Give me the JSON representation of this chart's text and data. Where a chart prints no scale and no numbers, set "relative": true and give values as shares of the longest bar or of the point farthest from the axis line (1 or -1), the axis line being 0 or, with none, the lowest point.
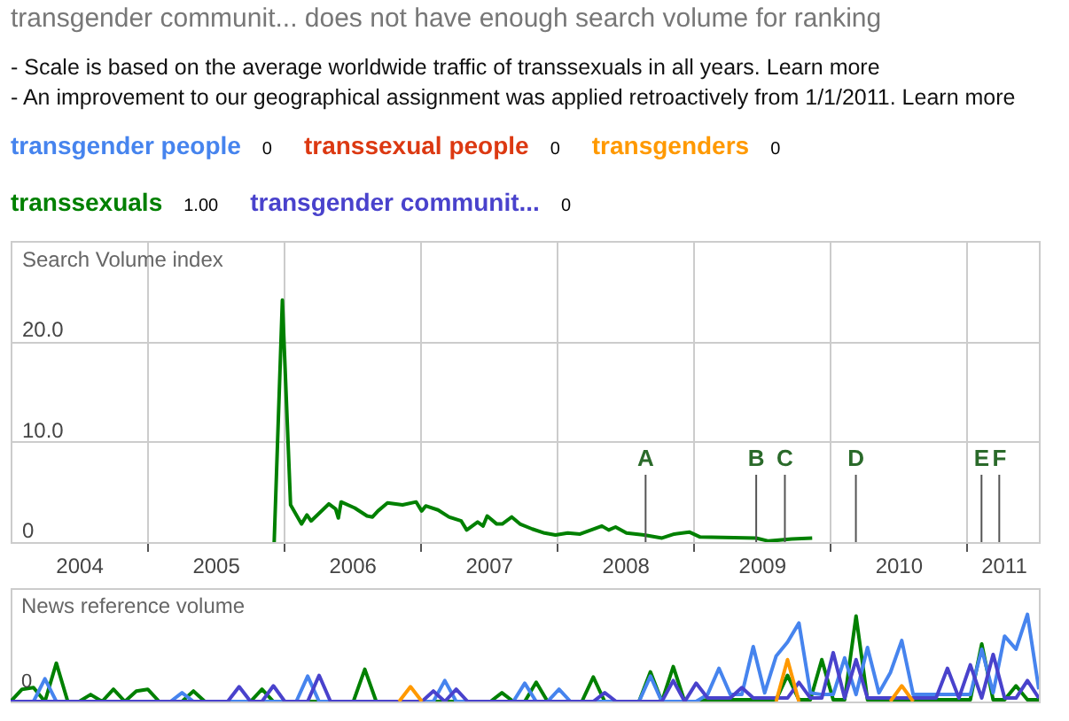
{
  "chart_data": [
    {
      "type": "other",
      "title": "transgender communit... does not have enough search volume for ranking",
      "annotations": [
        "- Scale is based on the average worldwide traffic of transsexuals in all years. Learn more",
        "- An improvement to our geographical assignment was applied retroactively from 1/1/2011. Learn more"
      ],
      "categories": [
        "transgender people",
        "transsexual people",
        "transgenders",
        "transsexuals",
        "transgender communit..."
      ],
      "value_labels": [
        "0",
        "0",
        "0",
        "1.00",
        "0"
      ],
      "colors": [
        "#4684ee",
        "#dc3912",
        "#ff9900",
        "#008000",
        "#4942cc"
      ]
    },
    {
      "type": "line",
      "ylabel": "Search Volume index",
      "grid": true,
      "xlim": [
        2004,
        2011.53
      ],
      "xticks": [
        {
          "value": 2004.5,
          "label": "2004"
        },
        {
          "value": 2005,
          "label": null
        },
        {
          "value": 2005.5,
          "label": "2005"
        },
        {
          "value": 2006,
          "label": null
        },
        {
          "value": 2006.5,
          "label": "2006"
        },
        {
          "value": 2007,
          "label": null
        },
        {
          "value": 2007.5,
          "label": "2007"
        },
        {
          "value": 2008,
          "label": null
        },
        {
          "value": 2008.5,
          "label": "2008"
        },
        {
          "value": 2009,
          "label": null
        },
        {
          "value": 2009.5,
          "label": "2009"
        },
        {
          "value": 2010,
          "label": null
        },
        {
          "value": 2010.5,
          "label": "2010"
        },
        {
          "value": 2011,
          "label": null
        },
        {
          "value": 2011.27,
          "label": "2011"
        }
      ],
      "ylim": [
        0,
        30
      ],
      "yticks": [
        0,
        {
          "value": 10,
          "label": "10.0"
        },
        {
          "value": 20,
          "label": "20.0"
        }
      ],
      "series": [
        {
          "color": "#008000",
          "x": [
            2005.93,
            2005.99,
            2006.05,
            2006.13,
            2006.17,
            2006.2,
            2006.33,
            2006.38,
            2006.4,
            2006.42,
            2006.52,
            2006.61,
            2006.65,
            2006.69,
            2006.76,
            2006.87,
            2006.97,
            2007.01,
            2007.04,
            2007.13,
            2007.21,
            2007.3,
            2007.34,
            2007.42,
            2007.46,
            2007.49,
            2007.56,
            2007.6,
            2007.67,
            2007.73,
            2007.82,
            2007.91,
            2007.99,
            2008.08,
            2008.17,
            2008.25,
            2008.33,
            2008.38,
            2008.43,
            2008.51,
            2008.64,
            2008.77,
            2008.86,
            2008.97,
            2009.05,
            2009.46,
            2009.55,
            2009.72,
            2009.87
          ],
          "values": [
            0,
            24.1,
            3.7,
            1.8,
            2.7,
            2.1,
            3.8,
            3.3,
            2.4,
            4.0,
            3.4,
            2.6,
            2.5,
            3.1,
            3.9,
            3.7,
            4.0,
            3.1,
            3.6,
            3.2,
            2.5,
            2.1,
            1.2,
            2.0,
            1.6,
            2.6,
            1.8,
            1.8,
            2.5,
            1.8,
            1.3,
            0.9,
            0.7,
            0.9,
            0.8,
            1.2,
            1.6,
            1.2,
            1.5,
            0.9,
            0.7,
            0.4,
            0.8,
            1.0,
            0.5,
            0.4,
            0.1,
            0.3,
            0.4
          ]
        }
      ],
      "ref_lines": [
        {
          "axis": "x",
          "value": 2008.65,
          "label": "A"
        },
        {
          "axis": "x",
          "value": 2009.46,
          "label": "B"
        },
        {
          "axis": "x",
          "value": 2009.67,
          "label": "C"
        },
        {
          "axis": "x",
          "value": 2010.19,
          "label": "D"
        },
        {
          "axis": "x",
          "value": 2011.11,
          "label": "E"
        },
        {
          "axis": "x",
          "value": 2011.24,
          "label": "F"
        }
      ]
    },
    {
      "type": "line",
      "ylabel": "News reference volume",
      "relative": true,
      "annotations": [
        "0"
      ],
      "categories": [
        null,
        null,
        null,
        null,
        null,
        null,
        null,
        null,
        null,
        null,
        null,
        null,
        null,
        null,
        null,
        null,
        null,
        null,
        null,
        null,
        null,
        null,
        null,
        null,
        null,
        null,
        null,
        null,
        null,
        null,
        null,
        null,
        null,
        null,
        null,
        null,
        null,
        null,
        null,
        null,
        null,
        null,
        null,
        null,
        null,
        null,
        null,
        null,
        null,
        null,
        null,
        null,
        null,
        null,
        null,
        null,
        null,
        null,
        null,
        null,
        null,
        null,
        null,
        null,
        null,
        null,
        null,
        null,
        null,
        null,
        null,
        null,
        null,
        null,
        null,
        null,
        null,
        null,
        null,
        null,
        null,
        null,
        null,
        null,
        null,
        null,
        null,
        null,
        null,
        null,
        null
      ],
      "series": [
        {
          "color": "#008000",
          "values": [
            0,
            0.14,
            0.16,
            0,
            0.44,
            0,
            0,
            0.08,
            0,
            0.14,
            0,
            0.12,
            0.14,
            0,
            0,
            0,
            0.12,
            0,
            0,
            0,
            0,
            0,
            0.14,
            0,
            0,
            0,
            0,
            0,
            0,
            0,
            0,
            0.37,
            0,
            0,
            0,
            0,
            0,
            0,
            0,
            0,
            0,
            0,
            0,
            0.1,
            0,
            0,
            0.22,
            0,
            0,
            0,
            0,
            0.28,
            0,
            0,
            0,
            0,
            0.34,
            0,
            0.4,
            0,
            0,
            0.02,
            0.02,
            0.02,
            0.02,
            0.02,
            0.02,
            0.02,
            0.3,
            0.02,
            0.02,
            0.48,
            0.02,
            0.02,
            0.98,
            0.02,
            0.02,
            0.02,
            0.02,
            0.02,
            0.02,
            0.02,
            0.02,
            0.02,
            0.02,
            0.66,
            0.02,
            0.02,
            0.18,
            0.02,
            0.02
          ]
        },
        {
          "color": "#4684ee",
          "values": [
            0,
            0,
            0,
            0.26,
            0,
            0,
            0,
            0,
            0,
            0,
            0,
            0,
            0,
            0,
            0,
            0.1,
            0,
            0,
            0,
            0,
            0,
            0,
            0,
            0,
            0,
            0,
            0.29,
            0,
            0,
            0,
            0,
            0,
            0,
            0,
            0,
            0,
            0,
            0,
            0.24,
            0,
            0,
            0,
            0,
            0,
            0,
            0.21,
            0,
            0,
            0.14,
            0,
            0,
            0,
            0,
            0,
            0,
            0,
            0.29,
            0,
            0,
            0,
            0,
            0.08,
            0.38,
            0.08,
            0.08,
            0.63,
            0.1,
            0.52,
            0.68,
            0.9,
            0.1,
            0.08,
            0.08,
            0.5,
            0.08,
            0.62,
            0.1,
            0.33,
            0.7,
            0.08,
            0.08,
            0.08,
            0.08,
            0.08,
            0.08,
            0.6,
            0.1,
            0.75,
            0.6,
            1,
            0.14
          ]
        },
        {
          "color": "#4942cc",
          "values": [
            0,
            0,
            0,
            0,
            0,
            0,
            0,
            0,
            0,
            0,
            0,
            0,
            0,
            0,
            0,
            0,
            0,
            0,
            0,
            0,
            0.17,
            0,
            0,
            0.18,
            0,
            0,
            0,
            0.3,
            0,
            0,
            0,
            0,
            0,
            0,
            0,
            0,
            0,
            0.12,
            0,
            0.14,
            0,
            0,
            0,
            0,
            0,
            0,
            0,
            0,
            0,
            0,
            0,
            0,
            0.1,
            0,
            0,
            0,
            0,
            0,
            0.24,
            0,
            0.21,
            0.04,
            0.04,
            0.04,
            0.16,
            0.04,
            0.04,
            0.04,
            0.04,
            0.22,
            0.04,
            0.04,
            0.56,
            0.04,
            0.48,
            0.04,
            0.04,
            0.04,
            0.04,
            0.04,
            0.04,
            0.04,
            0.38,
            0.04,
            0.42,
            0.04,
            0.54,
            0.04,
            0.04,
            0.24,
            0.04
          ]
        },
        {
          "color": "#ff9900",
          "values": [
            null,
            null,
            null,
            null,
            null,
            null,
            null,
            null,
            null,
            null,
            null,
            null,
            null,
            null,
            null,
            null,
            null,
            null,
            null,
            null,
            null,
            null,
            null,
            null,
            null,
            null,
            null,
            null,
            null,
            null,
            null,
            null,
            null,
            null,
            0,
            0.17,
            0,
            null,
            null,
            null,
            null,
            null,
            null,
            null,
            null,
            null,
            null,
            null,
            null,
            null,
            null,
            null,
            null,
            null,
            null,
            null,
            null,
            null,
            null,
            null,
            null,
            null,
            null,
            null,
            null,
            null,
            null,
            0,
            0.48,
            0,
            null,
            null,
            null,
            null,
            null,
            null,
            null,
            0,
            0.18,
            0,
            null,
            null,
            null,
            null,
            null,
            null,
            null,
            null,
            null,
            null,
            null
          ]
        }
      ]
    }
  ]
}
